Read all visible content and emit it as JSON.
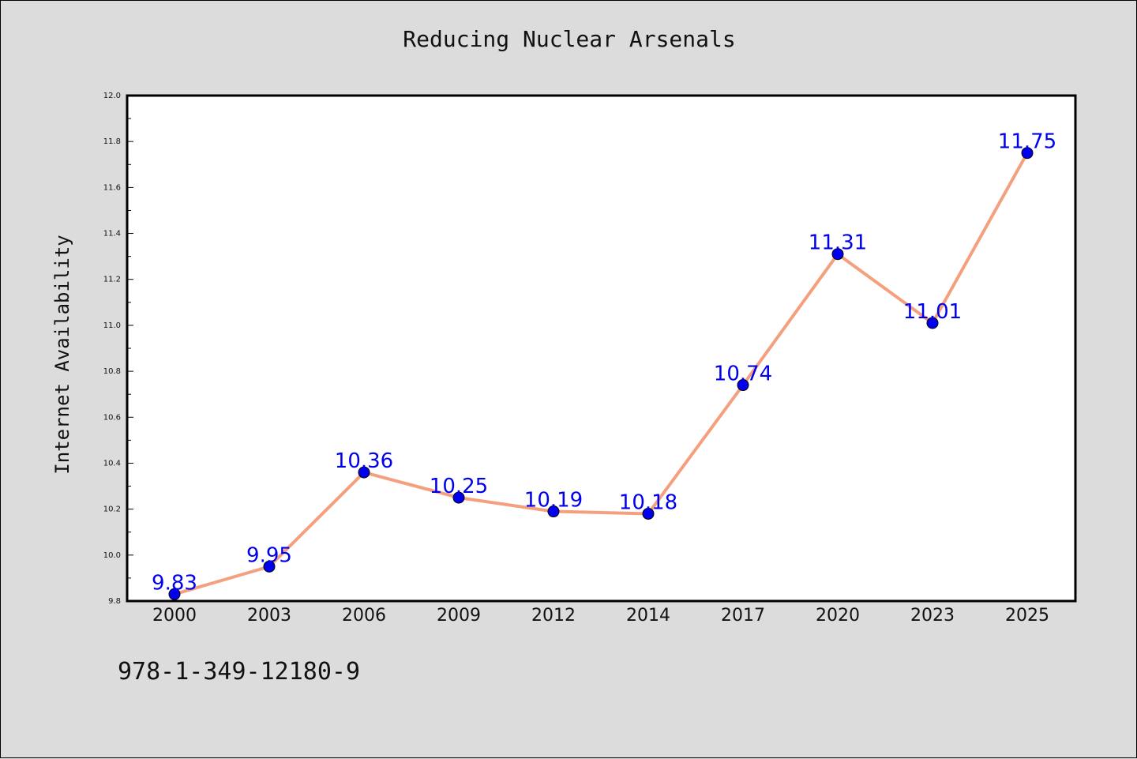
{
  "chart_data": {
    "type": "line",
    "title": "Reducing Nuclear Arsenals",
    "xlabel": "",
    "ylabel": "Internet Availability",
    "categories": [
      "2000",
      "2003",
      "2006",
      "2009",
      "2012",
      "2014",
      "2017",
      "2020",
      "2023",
      "2025"
    ],
    "series": [
      {
        "values": [
          9.83,
          9.95,
          10.36,
          10.25,
          10.19,
          10.18,
          10.74,
          11.31,
          11.01,
          11.75
        ],
        "labels": [
          "9.83",
          "9.95",
          "10.36",
          "10.25",
          "10.19",
          "10.18",
          "10.74",
          "11.31",
          "11.01",
          "11.75"
        ],
        "line_color": "#f4a07e",
        "marker_color": "#0000ee",
        "label_color": "#0000ee"
      }
    ],
    "ylim": [
      9.8,
      12.0
    ],
    "yticks": [
      "9.8",
      "10.0",
      "10.2",
      "10.4",
      "10.6",
      "10.8",
      "11.0",
      "11.2",
      "11.4",
      "11.6",
      "11.8",
      "12.0"
    ],
    "grid": false,
    "legend": "none"
  },
  "footer": {
    "isbn": "978-1-349-12180-9"
  }
}
